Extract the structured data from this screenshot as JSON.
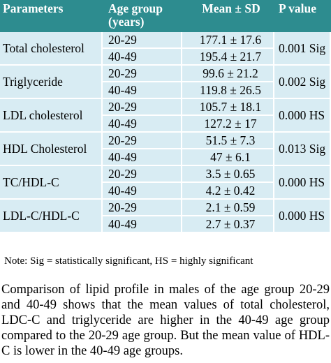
{
  "table": {
    "headers": [
      "Parameters",
      "Age group (years)",
      "Mean ± SD",
      "P value"
    ],
    "rows": [
      {
        "parameter": "Total cholesterol",
        "groups": [
          {
            "age": "20-29",
            "mean": "177.1 ± 17.6"
          },
          {
            "age": "40-49",
            "mean": "195.4 ± 21.7"
          }
        ],
        "p_value": "0.001 Sig"
      },
      {
        "parameter": "Triglyceride",
        "groups": [
          {
            "age": "20-29",
            "mean": "99.6 ± 21.2"
          },
          {
            "age": "40-49",
            "mean": "119.8 ± 26.5"
          }
        ],
        "p_value": "0.002 Sig"
      },
      {
        "parameter": "LDL cholesterol",
        "groups": [
          {
            "age": "20-29",
            "mean": "105.7 ± 18.1"
          },
          {
            "age": "40-49",
            "mean": "127.2 ± 17"
          }
        ],
        "p_value": "0.000 HS"
      },
      {
        "parameter": "HDL Cholesterol",
        "groups": [
          {
            "age": "20-29",
            "mean": "51.5 ± 7.3"
          },
          {
            "age": "40-49",
            "mean": "47 ± 6.1"
          }
        ],
        "p_value": "0.013 Sig"
      },
      {
        "parameter": "TC/HDL-C",
        "groups": [
          {
            "age": "20-29",
            "mean": "3.5 ± 0.65"
          },
          {
            "age": "40-49",
            "mean": "4.2 ± 0.42"
          }
        ],
        "p_value": "0.000 HS"
      },
      {
        "parameter": "LDL-C/HDL-C",
        "groups": [
          {
            "age": "20-29",
            "mean": "2.1 ± 0.59"
          },
          {
            "age": "40-49",
            "mean": "2.7 ± 0.37"
          }
        ],
        "p_value": "0.000 HS"
      }
    ]
  },
  "note": "Note: Sig = statistically significant, HS = highly significant",
  "paragraph": "Comparison of lipid profile in males of the age group 20-29 and 40-49 shows that the mean values of total cholesterol, LDC-C and triglyceride are higher in the 40-49 age group compared to the 20-29 age group. But the mean value of HDL-C is lower in the 40-49 age groups."
}
